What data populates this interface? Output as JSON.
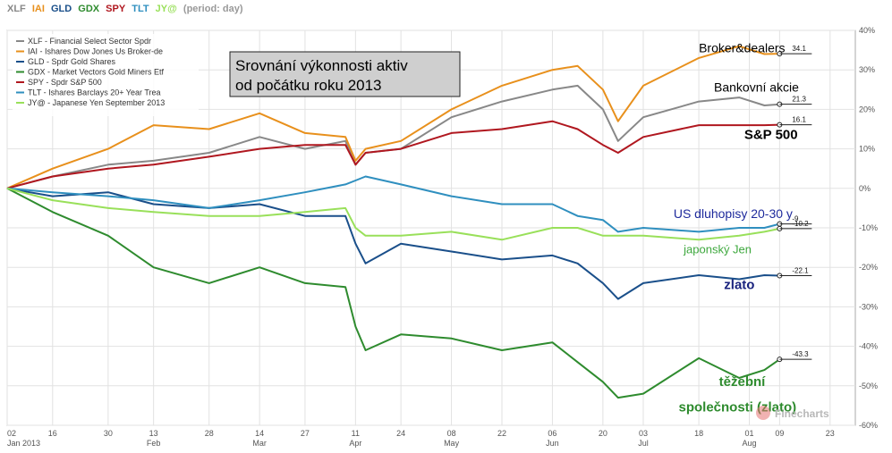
{
  "header": {
    "tickers": [
      {
        "symbol": "XLF",
        "color": "#888888"
      },
      {
        "symbol": "IAI",
        "color": "#e8901c"
      },
      {
        "symbol": "GLD",
        "color": "#1a4f8a"
      },
      {
        "symbol": "GDX",
        "color": "#2e8b2e"
      },
      {
        "symbol": "SPY",
        "color": "#b0171f"
      },
      {
        "symbol": "TLT",
        "color": "#2f8fbf"
      },
      {
        "symbol": "JY@",
        "color": "#99e05a"
      }
    ],
    "period": "(period: day)"
  },
  "title_box": {
    "line1": "Srovnání výkonnosti aktiv",
    "line2": "od počátku roku 2013"
  },
  "watermark": "Finecharts",
  "chart_data": {
    "type": "line",
    "ylim": [
      -60,
      40
    ],
    "y_ticks": [
      "40%",
      "30%",
      "20%",
      "10%",
      "0%",
      "-10%",
      "-20%",
      "-30%",
      "-40%",
      "-50%",
      "-60%"
    ],
    "x_ticks": [
      {
        "day": "02",
        "month": "Jan 2013"
      },
      {
        "day": "16",
        "month": ""
      },
      {
        "day": "30",
        "month": ""
      },
      {
        "day": "13",
        "month": "Feb"
      },
      {
        "day": "28",
        "month": ""
      },
      {
        "day": "14",
        "month": "Mar"
      },
      {
        "day": "27",
        "month": ""
      },
      {
        "day": "11",
        "month": "Apr"
      },
      {
        "day": "24",
        "month": ""
      },
      {
        "day": "08",
        "month": "May"
      },
      {
        "day": "22",
        "month": ""
      },
      {
        "day": "06",
        "month": "Jun"
      },
      {
        "day": "20",
        "month": ""
      },
      {
        "day": "03",
        "month": "Jul"
      },
      {
        "day": "18",
        "month": ""
      },
      {
        "day": "01",
        "month": "Aug"
      },
      {
        "day": "09",
        "month": ""
      },
      {
        "day": "23",
        "month": ""
      }
    ],
    "x_tick_index": [
      0,
      9,
      20,
      29,
      40,
      50,
      59,
      69,
      78,
      88,
      98,
      108,
      118,
      126,
      137,
      147,
      153,
      163
    ],
    "grid": true,
    "legend_position": "top-left",
    "series": [
      {
        "name": "XLF - Financial Select Sector Spdr",
        "color": "#888888",
        "end_label": "21.3",
        "points": [
          [
            0,
            0
          ],
          [
            9,
            3
          ],
          [
            20,
            6
          ],
          [
            29,
            7
          ],
          [
            40,
            9
          ],
          [
            50,
            13
          ],
          [
            59,
            10
          ],
          [
            67,
            12
          ],
          [
            69,
            6
          ],
          [
            71,
            9
          ],
          [
            78,
            10
          ],
          [
            88,
            18
          ],
          [
            98,
            22
          ],
          [
            108,
            25
          ],
          [
            113,
            26
          ],
          [
            118,
            20
          ],
          [
            121,
            12
          ],
          [
            126,
            18
          ],
          [
            137,
            22
          ],
          [
            145,
            23
          ],
          [
            150,
            21
          ],
          [
            153,
            21.3
          ]
        ]
      },
      {
        "name": "IAI - Ishares Dow Jones Us Broker-de",
        "color": "#e8901c",
        "end_label": "34.1",
        "points": [
          [
            0,
            0
          ],
          [
            9,
            5
          ],
          [
            20,
            10
          ],
          [
            29,
            16
          ],
          [
            40,
            15
          ],
          [
            50,
            19
          ],
          [
            59,
            14
          ],
          [
            67,
            13
          ],
          [
            69,
            7
          ],
          [
            71,
            10
          ],
          [
            78,
            12
          ],
          [
            88,
            20
          ],
          [
            98,
            26
          ],
          [
            108,
            30
          ],
          [
            113,
            31
          ],
          [
            118,
            25
          ],
          [
            121,
            17
          ],
          [
            126,
            26
          ],
          [
            137,
            33
          ],
          [
            145,
            36
          ],
          [
            150,
            34
          ],
          [
            153,
            34.1
          ]
        ]
      },
      {
        "name": "GLD - Spdr Gold Shares",
        "color": "#1a4f8a",
        "end_label": "-22.1",
        "points": [
          [
            0,
            0
          ],
          [
            9,
            -2
          ],
          [
            20,
            -1
          ],
          [
            29,
            -4
          ],
          [
            40,
            -5
          ],
          [
            50,
            -4
          ],
          [
            59,
            -7
          ],
          [
            67,
            -7
          ],
          [
            69,
            -14
          ],
          [
            71,
            -19
          ],
          [
            78,
            -14
          ],
          [
            88,
            -16
          ],
          [
            98,
            -18
          ],
          [
            108,
            -17
          ],
          [
            113,
            -19
          ],
          [
            118,
            -24
          ],
          [
            121,
            -28
          ],
          [
            126,
            -24
          ],
          [
            137,
            -22
          ],
          [
            145,
            -23
          ],
          [
            150,
            -22
          ],
          [
            153,
            -22.1
          ]
        ]
      },
      {
        "name": "GDX - Market Vectors Gold Miners Etf",
        "color": "#2e8b2e",
        "end_label": "-43.3",
        "points": [
          [
            0,
            0
          ],
          [
            9,
            -6
          ],
          [
            20,
            -12
          ],
          [
            29,
            -20
          ],
          [
            40,
            -24
          ],
          [
            50,
            -20
          ],
          [
            59,
            -24
          ],
          [
            67,
            -25
          ],
          [
            69,
            -35
          ],
          [
            71,
            -41
          ],
          [
            78,
            -37
          ],
          [
            88,
            -38
          ],
          [
            98,
            -41
          ],
          [
            108,
            -39
          ],
          [
            113,
            -44
          ],
          [
            118,
            -49
          ],
          [
            121,
            -53
          ],
          [
            126,
            -52
          ],
          [
            137,
            -43
          ],
          [
            145,
            -48
          ],
          [
            150,
            -46
          ],
          [
            153,
            -43.3
          ]
        ]
      },
      {
        "name": "SPY - Spdr S&P 500",
        "color": "#b0171f",
        "end_label": "16.1",
        "points": [
          [
            0,
            0
          ],
          [
            9,
            3
          ],
          [
            20,
            5
          ],
          [
            29,
            6
          ],
          [
            40,
            8
          ],
          [
            50,
            10
          ],
          [
            59,
            11
          ],
          [
            67,
            11
          ],
          [
            69,
            6
          ],
          [
            71,
            9
          ],
          [
            78,
            10
          ],
          [
            88,
            14
          ],
          [
            98,
            15
          ],
          [
            108,
            17
          ],
          [
            113,
            15
          ],
          [
            118,
            11
          ],
          [
            121,
            9
          ],
          [
            126,
            13
          ],
          [
            137,
            16
          ],
          [
            145,
            16
          ],
          [
            150,
            16
          ],
          [
            153,
            16.1
          ]
        ]
      },
      {
        "name": "TLT - Ishares Barclays 20+ Year Trea",
        "color": "#2f8fbf",
        "end_label": "-9",
        "points": [
          [
            0,
            0
          ],
          [
            9,
            -1
          ],
          [
            20,
            -2
          ],
          [
            29,
            -3
          ],
          [
            40,
            -5
          ],
          [
            50,
            -3
          ],
          [
            59,
            -1
          ],
          [
            67,
            1
          ],
          [
            69,
            2
          ],
          [
            71,
            3
          ],
          [
            78,
            1
          ],
          [
            88,
            -2
          ],
          [
            98,
            -4
          ],
          [
            108,
            -4
          ],
          [
            113,
            -7
          ],
          [
            118,
            -8
          ],
          [
            121,
            -11
          ],
          [
            126,
            -10
          ],
          [
            137,
            -11
          ],
          [
            145,
            -10
          ],
          [
            150,
            -10
          ],
          [
            153,
            -9
          ]
        ]
      },
      {
        "name": "JY@ - Japanese Yen September 2013",
        "color": "#99e05a",
        "end_label": "-10.2",
        "points": [
          [
            0,
            0
          ],
          [
            9,
            -3
          ],
          [
            20,
            -5
          ],
          [
            29,
            -6
          ],
          [
            40,
            -7
          ],
          [
            50,
            -7
          ],
          [
            59,
            -6
          ],
          [
            67,
            -5
          ],
          [
            69,
            -10
          ],
          [
            71,
            -12
          ],
          [
            78,
            -12
          ],
          [
            88,
            -11
          ],
          [
            98,
            -13
          ],
          [
            108,
            -10
          ],
          [
            113,
            -10
          ],
          [
            118,
            -12
          ],
          [
            121,
            -12
          ],
          [
            126,
            -12
          ],
          [
            137,
            -13
          ],
          [
            145,
            -12
          ],
          [
            150,
            -11
          ],
          [
            153,
            -10.2
          ]
        ]
      }
    ],
    "annotations": [
      {
        "text": "Broker&dealers",
        "color": "#000000",
        "bold": false,
        "size": 14,
        "x": 137,
        "y": 34.5
      },
      {
        "text": "Bankovní akcie",
        "color": "#000000",
        "bold": false,
        "size": 14,
        "x": 140,
        "y": 24.5
      },
      {
        "text": "S&P 500",
        "color": "#000000",
        "bold": true,
        "size": 15,
        "x": 146,
        "y": 12.5
      },
      {
        "text": "US dluhopisy 20-30 y",
        "color": "#1e2a9c",
        "bold": false,
        "size": 14,
        "x": 132,
        "y": -7.5
      },
      {
        "text": "japonský Jen",
        "color": "#3ea83e",
        "bold": false,
        "size": 13,
        "x": 134,
        "y": -16.5
      },
      {
        "text": "zlato",
        "color": "#1a237e",
        "bold": true,
        "size": 15,
        "x": 142,
        "y": -25.5
      },
      {
        "text": "těžební",
        "color": "#2e8b2e",
        "bold": true,
        "size": 15,
        "x": 141,
        "y": -50
      },
      {
        "text": "společnosti  (zlato)",
        "color": "#2e8b2e",
        "bold": true,
        "size": 15,
        "x": 133,
        "y": -56.5
      }
    ]
  }
}
